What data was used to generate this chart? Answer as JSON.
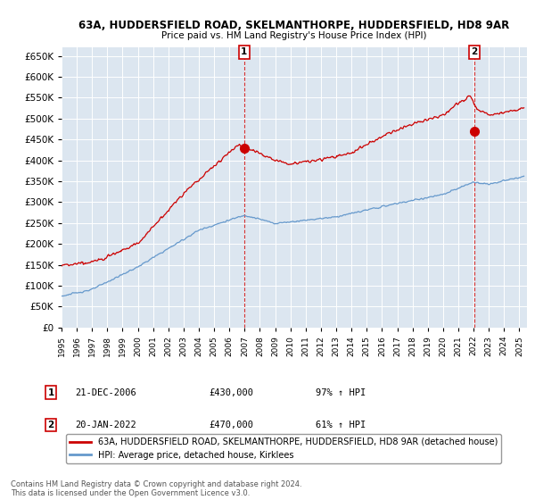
{
  "title_line1": "63A, HUDDERSFIELD ROAD, SKELMANTHORPE, HUDDERSFIELD, HD8 9AR",
  "title_line2": "Price paid vs. HM Land Registry's House Price Index (HPI)",
  "background_color": "#ffffff",
  "plot_background": "#dce6f0",
  "grid_color": "#ffffff",
  "hpi_color": "#6699cc",
  "price_color": "#cc0000",
  "ylim": [
    0,
    670000
  ],
  "yticks": [
    0,
    50000,
    100000,
    150000,
    200000,
    250000,
    300000,
    350000,
    400000,
    450000,
    500000,
    550000,
    600000,
    650000
  ],
  "sale1_date_num": 2006.97,
  "sale1_price": 430000,
  "sale2_date_num": 2022.05,
  "sale2_price": 470000,
  "legend_label_price": "63A, HUDDERSFIELD ROAD, SKELMANTHORPE, HUDDERSFIELD, HD8 9AR (detached house)",
  "legend_label_hpi": "HPI: Average price, detached house, Kirklees",
  "footer": "Contains HM Land Registry data © Crown copyright and database right 2024.\nThis data is licensed under the Open Government Licence v3.0.",
  "xmin": 1995.0,
  "xmax": 2025.5
}
